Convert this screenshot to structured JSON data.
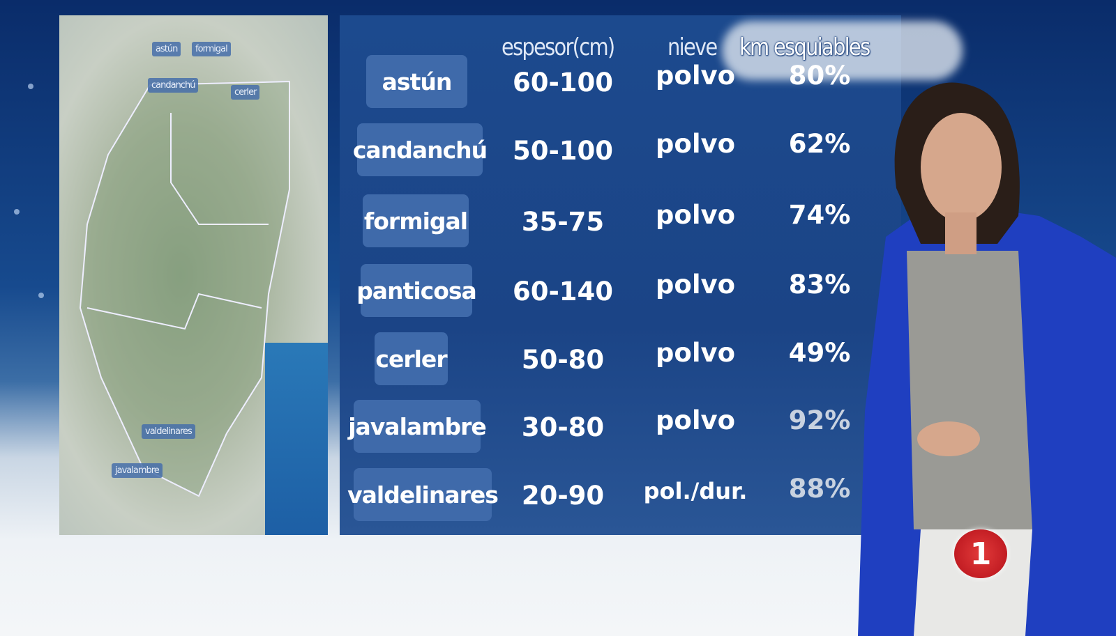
{
  "map": {
    "labels": [
      "astún",
      "formigal",
      "candanchú",
      "cerler",
      "valdelinares",
      "javalambre"
    ]
  },
  "table": {
    "headers": {
      "espesor": "espesor(cm)",
      "nieve": "nieve",
      "km": "km esquiables"
    },
    "rows": [
      {
        "name": "astún",
        "espesor": "60-100",
        "nieve": "polvo",
        "km": "80%"
      },
      {
        "name": "candanchú",
        "espesor": "50-100",
        "nieve": "polvo",
        "km": "62%"
      },
      {
        "name": "formigal",
        "espesor": "35-75",
        "nieve": "polvo",
        "km": "74%"
      },
      {
        "name": "panticosa",
        "espesor": "60-140",
        "nieve": "polvo",
        "km": "83%"
      },
      {
        "name": "cerler",
        "espesor": "50-80",
        "nieve": "polvo",
        "km": "49%"
      },
      {
        "name": "javalambre",
        "espesor": "30-80",
        "nieve": "polvo",
        "km": "92%"
      },
      {
        "name": "valdelinares",
        "espesor": "20-90",
        "nieve": "pol./dur.",
        "km": "88%"
      }
    ]
  },
  "channel_logo": "1",
  "colors": {
    "panel": "#1c4a8e",
    "pill": "#3f6aaa",
    "logo": "#d01f28"
  }
}
